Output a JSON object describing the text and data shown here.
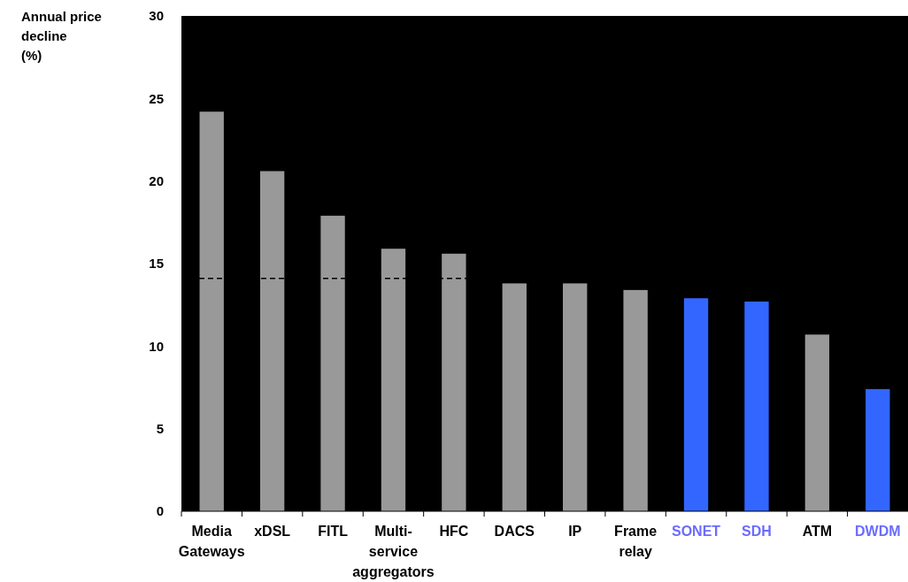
{
  "chart_data": {
    "type": "bar",
    "ylabel": "Annual price decline (%)",
    "categories": [
      "Media Gateways",
      "xDSL",
      "FITL",
      "Multi-service aggregators",
      "HFC",
      "DACS",
      "IP",
      "Frame relay",
      "SONET",
      "SDH",
      "ATM",
      "DWDM"
    ],
    "series": [
      {
        "color": "#999999",
        "colors": [
          "#999999",
          "#999999",
          "#999999",
          "#999999",
          "#999999",
          "#999999",
          "#999999",
          "#999999",
          "#3366ff",
          "#3366ff",
          "#999999",
          "#3366ff"
        ],
        "values": [
          24.2,
          20.6,
          17.9,
          15.9,
          15.6,
          13.8,
          13.8,
          13.4,
          12.9,
          12.7,
          10.7,
          7.4
        ]
      }
    ],
    "ylim": [
      0,
      30
    ],
    "yticks": [
      0,
      5,
      10,
      15,
      20,
      25,
      30
    ],
    "ref_lines": [
      {
        "axis": "y",
        "value": 14.1,
        "color": "#000000",
        "line_style": "dashed"
      }
    ]
  }
}
